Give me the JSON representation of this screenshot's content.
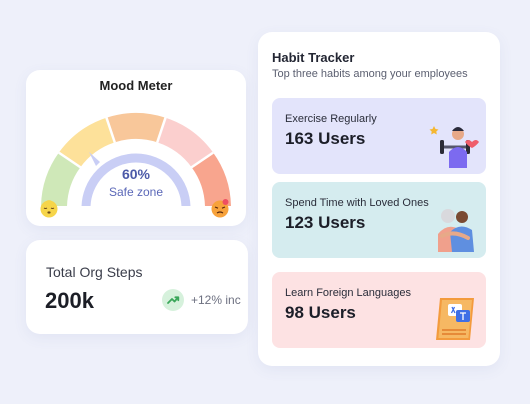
{
  "mood_meter": {
    "title": "Mood Meter",
    "value": "60%",
    "caption": "Safe zone",
    "gauge_segments": [
      "#cfe8b8",
      "#fde19a",
      "#f8c79a",
      "#fbcfce",
      "#f8a58e"
    ],
    "inner_arc_color": "#c9cef5",
    "left_emoji": "sleepy-face-icon",
    "right_emoji": "angry-face-icon"
  },
  "steps": {
    "title": "Total Org Steps",
    "value": "200k",
    "trend_icon": "trending-up-icon",
    "trend_text": "+12% inc",
    "trend_color": "#3aa75a"
  },
  "habit_tracker": {
    "title": "Habit Tracker",
    "subtitle": "Top three habits among your employees",
    "items": [
      {
        "label": "Exercise Regularly",
        "count": "163 Users",
        "icon": "dumbbell-person-icon",
        "bg": "#e3e4fb"
      },
      {
        "label": "Spend Time with Loved Ones",
        "count": "123 Users",
        "icon": "hugging-people-icon",
        "bg": "#d5ecef"
      },
      {
        "label": "Learn Foreign Languages",
        "count": "98 Users",
        "icon": "translate-book-icon",
        "bg": "#fde2e3"
      }
    ]
  }
}
